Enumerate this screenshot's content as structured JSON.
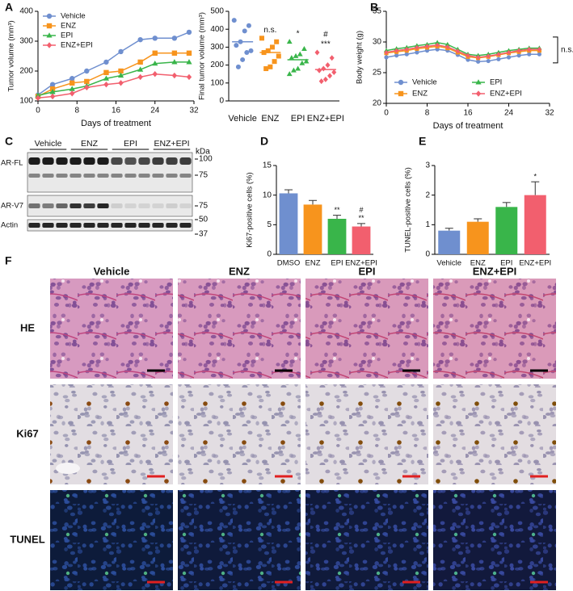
{
  "panel_labels": [
    "A",
    "B",
    "C",
    "D",
    "E",
    "F"
  ],
  "chart_data": [
    {
      "type": "line",
      "xlabel": "Days of treatment",
      "ylabel": "Tumor volume (mm³)",
      "x": [
        0,
        3,
        7,
        10,
        14,
        17,
        21,
        24,
        28,
        31
      ],
      "xlim": [
        0,
        32
      ],
      "xticks": [
        0,
        8,
        16,
        24,
        32
      ],
      "ylim": [
        100,
        400
      ],
      "yticks": [
        100,
        200,
        300,
        400
      ],
      "legend": "upper left",
      "series": [
        {
          "name": "Vehicle",
          "color": "#6f8fcf",
          "marker": "circle",
          "values": [
            120,
            155,
            175,
            200,
            230,
            265,
            305,
            310,
            310,
            330
          ]
        },
        {
          "name": "ENZ",
          "color": "#f7941d",
          "marker": "square",
          "values": [
            115,
            140,
            160,
            165,
            195,
            200,
            230,
            260,
            260,
            260
          ]
        },
        {
          "name": "EPI",
          "color": "#39b54a",
          "marker": "triangle",
          "values": [
            118,
            130,
            140,
            150,
            175,
            185,
            205,
            225,
            230,
            230
          ]
        },
        {
          "name": "ENZ+EPI",
          "color": "#f25f6e",
          "marker": "diamond",
          "values": [
            110,
            115,
            125,
            145,
            155,
            160,
            180,
            190,
            185,
            180
          ]
        }
      ]
    },
    {
      "type": "dot",
      "ylabel": "Final tumor volume (mm³)",
      "categories": [
        "Vehicle",
        "ENZ",
        "EPI",
        "ENZ+EPI"
      ],
      "colors": [
        "#6f8fcf",
        "#f7941d",
        "#39b54a",
        "#f25f6e"
      ],
      "markers": [
        "circle",
        "square",
        "triangle",
        "diamond"
      ],
      "values": [
        [
          450,
          420,
          390,
          330,
          310,
          280,
          270,
          230,
          190
        ],
        [
          350,
          330,
          300,
          280,
          270,
          250,
          220,
          190,
          180
        ],
        [
          330,
          290,
          260,
          250,
          240,
          220,
          210,
          180,
          170,
          150
        ],
        [
          270,
          240,
          200,
          180,
          170,
          160,
          140,
          120,
          110
        ]
      ],
      "means": [
        330,
        270,
        230,
        175
      ],
      "annotations": [
        null,
        [
          "n.s."
        ],
        [
          "*"
        ],
        [
          "#",
          "***"
        ]
      ],
      "ylim": [
        0,
        500
      ],
      "yticks": [
        0,
        100,
        200,
        300,
        400,
        500
      ]
    },
    {
      "type": "line",
      "xlabel": "Days of treatment",
      "ylabel": "Body weight (g)",
      "x": [
        0,
        2,
        4,
        6,
        8,
        10,
        12,
        14,
        16,
        18,
        20,
        22,
        24,
        26,
        28,
        30
      ],
      "xlim": [
        0,
        32
      ],
      "xticks": [
        0,
        8,
        16,
        24,
        32
      ],
      "ylim": [
        20,
        35
      ],
      "yticks": [
        20,
        25,
        30,
        35
      ],
      "legend": "lower left",
      "annotations": [
        "n.s."
      ],
      "series": [
        {
          "name": "Vehicle",
          "color": "#6f8fcf",
          "marker": "circle",
          "values": [
            27.5,
            27.8,
            28.0,
            28.3,
            28.6,
            28.8,
            28.6,
            27.9,
            27.1,
            26.8,
            26.9,
            27.2,
            27.5,
            27.8,
            28.0,
            28.0
          ]
        },
        {
          "name": "ENZ",
          "color": "#f7941d",
          "marker": "square",
          "values": [
            28.2,
            28.4,
            28.6,
            28.9,
            29.1,
            29.3,
            29.0,
            28.3,
            27.6,
            27.4,
            27.6,
            27.9,
            28.2,
            28.4,
            28.6,
            28.6
          ]
        },
        {
          "name": "EPI",
          "color": "#39b54a",
          "marker": "triangle",
          "values": [
            28.6,
            28.9,
            29.1,
            29.4,
            29.6,
            29.9,
            29.6,
            28.8,
            28.0,
            27.8,
            28.0,
            28.3,
            28.6,
            28.8,
            29.0,
            29.0
          ]
        },
        {
          "name": "ENZ+EPI",
          "color": "#f25f6e",
          "marker": "diamond",
          "values": [
            28.3,
            28.6,
            28.8,
            29.1,
            29.3,
            29.5,
            29.2,
            28.5,
            27.8,
            27.5,
            27.7,
            28.0,
            28.3,
            28.6,
            28.8,
            28.8
          ]
        }
      ]
    },
    {
      "type": "bar",
      "ylabel": "Ki67-positive cells (%)",
      "categories": [
        "DMSO",
        "ENZ",
        "EPI",
        "ENZ+EPI"
      ],
      "values": [
        10.3,
        8.4,
        6.0,
        4.7
      ],
      "errors": [
        0.6,
        0.7,
        0.6,
        0.5
      ],
      "colors": [
        "#6f8fcf",
        "#f7941d",
        "#39b54a",
        "#f25f6e"
      ],
      "annotations": [
        null,
        null,
        [
          "**"
        ],
        [
          "#",
          "**"
        ]
      ],
      "ylim": [
        0,
        15
      ],
      "yticks": [
        0,
        5,
        10,
        15
      ]
    },
    {
      "type": "bar",
      "ylabel": "TUNEL-positive cells (%)",
      "categories": [
        "Vehicle",
        "ENZ",
        "EPI",
        "ENZ+EPI"
      ],
      "values": [
        0.8,
        1.1,
        1.6,
        2.0
      ],
      "errors": [
        0.08,
        0.1,
        0.15,
        0.45
      ],
      "colors": [
        "#6f8fcf",
        "#f7941d",
        "#39b54a",
        "#f25f6e"
      ],
      "annotations": [
        null,
        null,
        null,
        [
          "*"
        ]
      ],
      "ylim": [
        0,
        3
      ],
      "yticks": [
        0,
        1,
        2,
        3
      ]
    }
  ],
  "blot": {
    "groups": [
      "Vehicle",
      "ENZ",
      "EPI",
      "ENZ+EPI"
    ],
    "rows": [
      "AR-FL",
      "AR-V7",
      "Actin"
    ],
    "unit": "kDa",
    "markers": [
      100,
      75,
      75,
      50,
      37
    ]
  },
  "histology": {
    "columns": [
      "Vehicle",
      "ENZ",
      "EPI",
      "ENZ+EPI"
    ],
    "rows": [
      "HE",
      "Ki67",
      "TUNEL"
    ]
  }
}
